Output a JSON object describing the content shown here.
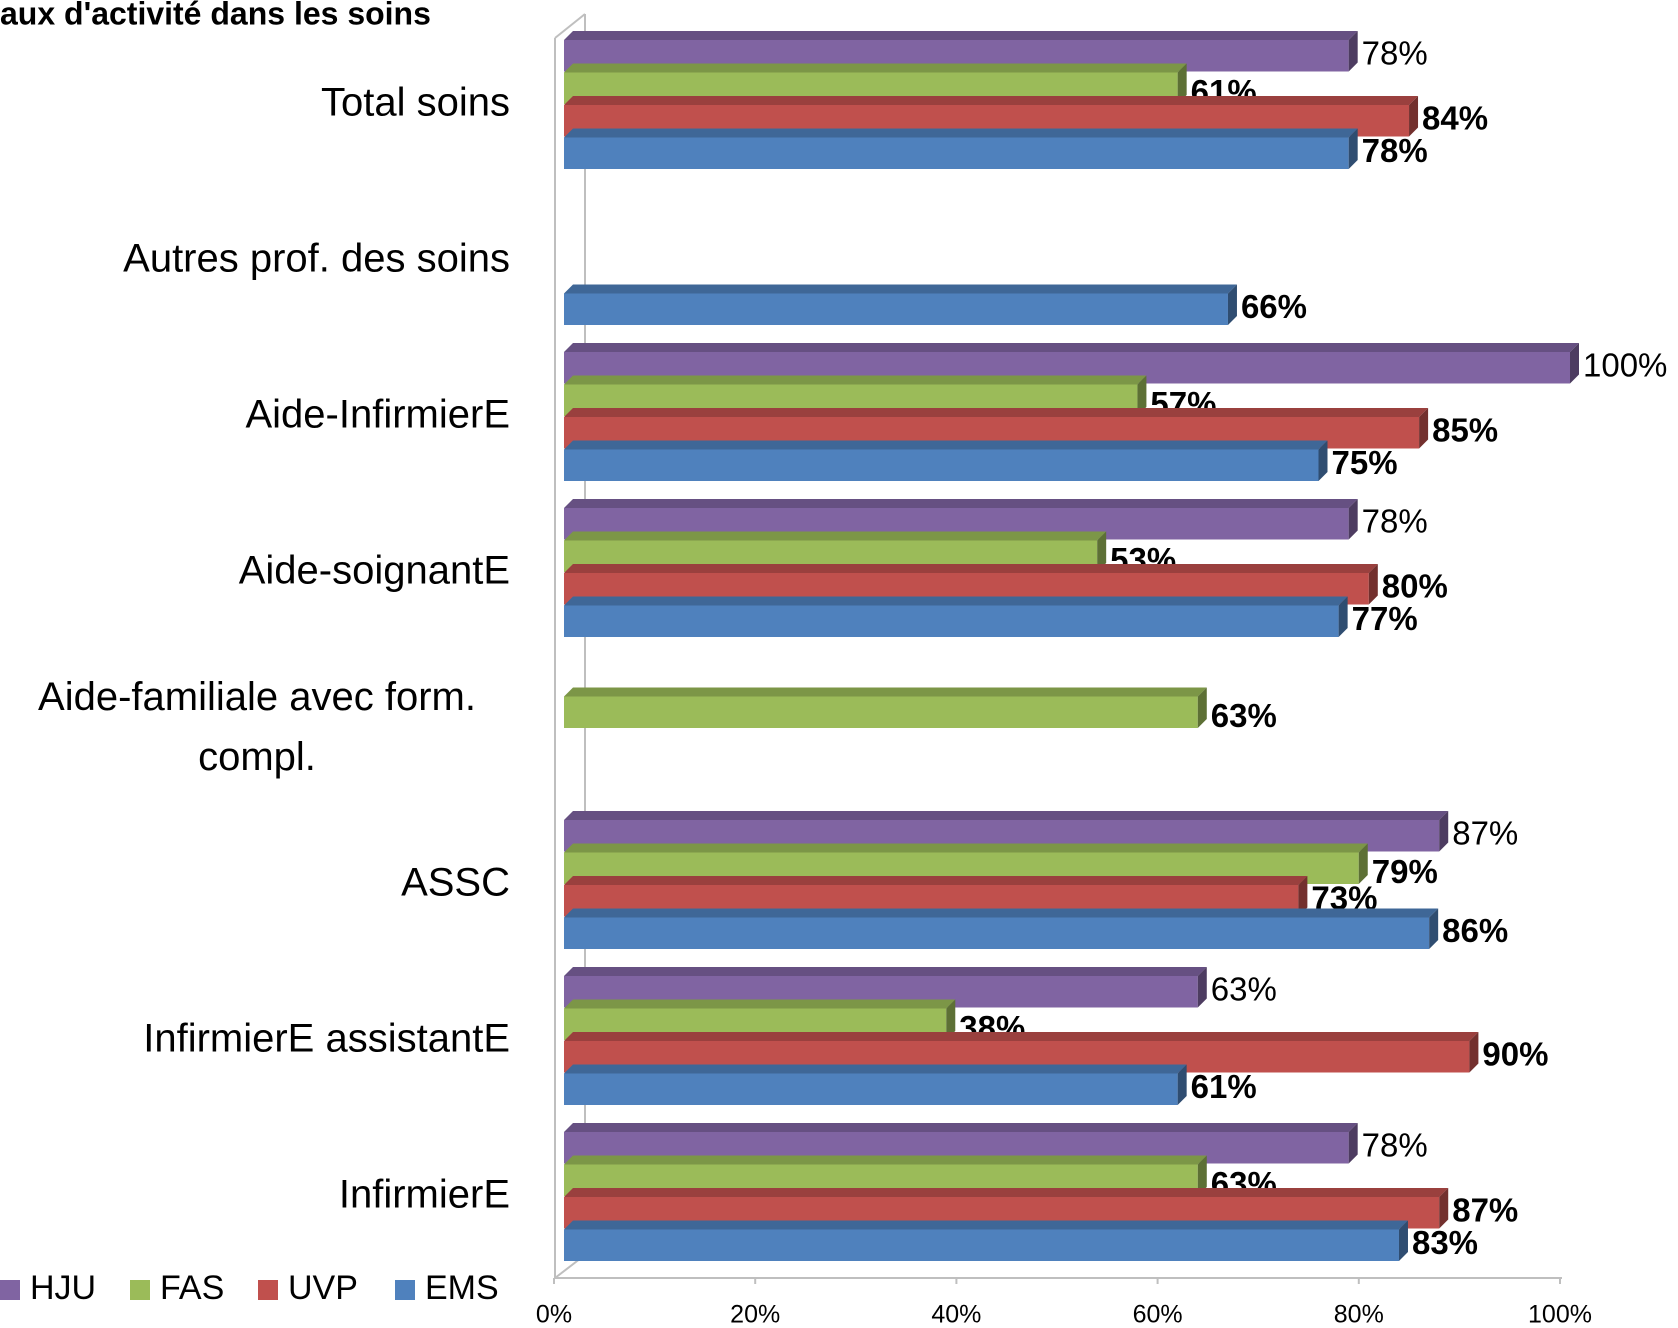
{
  "chart_data": {
    "type": "bar",
    "orientation": "horizontal",
    "title": "aux d'activité dans les soins",
    "categories": [
      "Total soins",
      "Autres prof. des soins",
      "Aide-InfirmierE",
      "Aide-soignantE",
      "Aide-familiale avec form. compl.",
      "ASSC",
      "InfirmierE assistantE",
      "InfirmierE"
    ],
    "series": [
      {
        "name": "HJU",
        "color": "#8064a2",
        "label_color": "#000000",
        "label_bold": false,
        "values": [
          78,
          null,
          100,
          78,
          null,
          87,
          63,
          78
        ],
        "value_labels": [
          "78%",
          null,
          "100%",
          "78%",
          null,
          "87%",
          "63%",
          "78%"
        ]
      },
      {
        "name": "FAS",
        "color": "#9bbb59",
        "label_color": "#000000",
        "label_bold": true,
        "values": [
          61,
          null,
          57,
          53,
          63,
          79,
          38,
          63
        ],
        "value_labels": [
          "61%",
          null,
          "57%",
          "53%",
          "63%",
          "79%",
          "38%",
          "63%"
        ]
      },
      {
        "name": "UVP",
        "color": "#c0504d",
        "label_color": "#e46c0a",
        "label_bold": true,
        "values": [
          84,
          null,
          85,
          80,
          null,
          73,
          90,
          87
        ],
        "value_labels": [
          "84%",
          null,
          "85%",
          "80%",
          null,
          "73%",
          "90%",
          "87%"
        ]
      },
      {
        "name": "EMS",
        "color": "#4f81bd",
        "label_color": "#0070c0",
        "label_bold": true,
        "values": [
          78,
          66,
          75,
          77,
          null,
          86,
          61,
          83
        ],
        "value_labels": [
          "78%",
          "66%",
          "75%",
          "77%",
          null,
          "86%",
          "61%",
          "83%"
        ]
      }
    ],
    "xlim": [
      0,
      100
    ],
    "xticks": [
      {
        "value": 0,
        "label": "0%"
      },
      {
        "value": 20,
        "label": "20%"
      },
      {
        "value": 40,
        "label": "40%"
      },
      {
        "value": 60,
        "label": "60%"
      },
      {
        "value": 80,
        "label": "80%"
      },
      {
        "value": 100,
        "label": "100%"
      }
    ],
    "grid": false,
    "legend": "bottom-left"
  }
}
